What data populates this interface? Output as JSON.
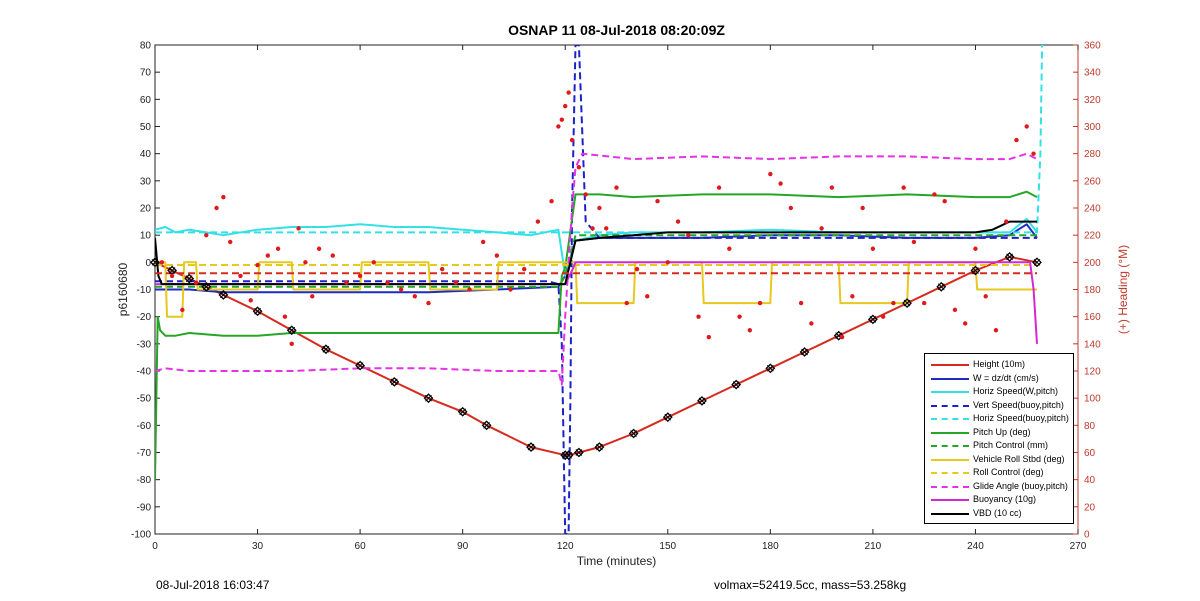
{
  "header": {
    "title": "OSNAP 11 08-Jul-2018 08:20:09Z"
  },
  "footer": {
    "timestamp": "08-Jul-2018 16:03:47",
    "stats": "volmax=52419.5cc, mass=53.258kg"
  },
  "chart_data": {
    "type": "line",
    "title": "OSNAP 11 08-Jul-2018 08:20:09Z",
    "xlabel": "Time (minutes)",
    "ylabel": "p6160680",
    "y2label": "(+) Heading (°M)",
    "xlim": [
      0,
      270
    ],
    "ylim": [
      -100,
      80
    ],
    "y2lim": [
      0,
      360
    ],
    "xticks": [
      "0",
      "30",
      "60",
      "90",
      "120",
      "150",
      "180",
      "210",
      "240",
      "270"
    ],
    "yticks": [
      "80",
      "70",
      "60",
      "50",
      "40",
      "30",
      "20",
      "10",
      "0",
      "-10",
      "-20",
      "-30",
      "-40",
      "-50",
      "-60",
      "-70",
      "-80",
      "-90",
      "-100"
    ],
    "y2ticks": [
      "360",
      "340",
      "320",
      "300",
      "280",
      "260",
      "240",
      "220",
      "200",
      "180",
      "160",
      "140",
      "120",
      "100",
      "80",
      "60",
      "40",
      "20",
      "0"
    ],
    "grid": false,
    "legend_position": "bottom-right",
    "colors": {
      "height": "#d62a1e",
      "w": "#1f2dbf",
      "horiz": "#33e0e6",
      "vert": "#1a22c8",
      "pitch": "#26a526",
      "roll": "#e6c81e",
      "glide": "#e632e6",
      "buoy": "#d22ad2",
      "vbd": "#000000",
      "heading": "#e0191b",
      "right_axis": "#c0392b"
    },
    "series": [
      {
        "name": "Height (10m)",
        "color": "#d62a1e",
        "style": "solid",
        "x": [
          0,
          5,
          10,
          15,
          20,
          30,
          40,
          50,
          60,
          70,
          80,
          90,
          97,
          110,
          120,
          121,
          124,
          130,
          140,
          150,
          160,
          170,
          180,
          190,
          200,
          210,
          220,
          230,
          240,
          250,
          258
        ],
        "y": [
          0,
          -3,
          -6,
          -9,
          -12,
          -18,
          -25,
          -32,
          -38,
          -44,
          -50,
          -55,
          -60,
          -68,
          -71,
          -71,
          -70,
          -68,
          -63,
          -57,
          -51,
          -45,
          -39,
          -33,
          -27,
          -21,
          -15,
          -9,
          -3,
          2,
          0
        ]
      },
      {
        "name": "W = dz/dt (cm/s)",
        "color": "#1f2dbf",
        "style": "solid",
        "x": [
          0,
          10,
          20,
          40,
          60,
          80,
          100,
          118,
          120,
          123,
          130,
          140,
          150,
          160,
          180,
          200,
          220,
          240,
          250,
          255,
          258
        ],
        "y": [
          -10,
          -10,
          -11,
          -11,
          -11,
          -11,
          -10,
          -9,
          -5,
          8,
          9,
          9,
          9,
          9,
          10,
          10,
          9,
          9,
          10,
          14,
          9
        ]
      },
      {
        "name": "Horiz Speed(W,pitch)",
        "color": "#33e0e6",
        "style": "solid",
        "x": [
          0,
          3,
          6,
          10,
          15,
          20,
          30,
          40,
          50,
          60,
          70,
          80,
          90,
          100,
          110,
          118,
          120,
          123,
          130,
          140,
          160,
          180,
          200,
          220,
          240,
          250,
          255,
          258
        ],
        "y": [
          12,
          13,
          11,
          12,
          11,
          10,
          12,
          13,
          13,
          14,
          13,
          13,
          12,
          11,
          10,
          12,
          -5,
          8,
          10,
          11,
          11,
          12,
          11,
          11,
          11,
          11,
          16,
          11
        ]
      },
      {
        "name": "Vert Speed(buoy,pitch)",
        "color": "#1a22c8",
        "style": "dashed",
        "x": [
          0,
          30,
          60,
          90,
          115,
          118,
          119,
          120,
          121,
          121.5,
          122,
          123,
          124,
          126,
          130,
          160,
          200,
          240,
          258
        ],
        "y": [
          -7,
          -7,
          -7,
          -7,
          -7,
          -8,
          -30,
          -100,
          -100,
          -50,
          20,
          80,
          80,
          15,
          9,
          9,
          9,
          9,
          9
        ]
      },
      {
        "name": "Horiz Speed(buoy,pitch)",
        "color": "#33e0e6",
        "style": "dashed",
        "x": [
          0,
          30,
          60,
          90,
          118,
          120,
          123,
          130,
          160,
          200,
          240,
          258,
          259,
          259.5,
          260
        ],
        "y": [
          11,
          11,
          11,
          11,
          11,
          11,
          11,
          11,
          11,
          11,
          11,
          11,
          40,
          80,
          80
        ]
      },
      {
        "name": "Pitch Up (deg)",
        "color": "#26a526",
        "style": "solid",
        "x": [
          0,
          0.8,
          1.5,
          3,
          6,
          10,
          20,
          30,
          40,
          60,
          80,
          100,
          118,
          119,
          120,
          123,
          130,
          140,
          160,
          180,
          200,
          220,
          240,
          250,
          255,
          258
        ],
        "y": [
          -80,
          -20,
          -25,
          -27,
          -27,
          -26,
          -27,
          -27,
          -26,
          -26,
          -26,
          -26,
          -26,
          -5,
          -2,
          25,
          25,
          24,
          25,
          25,
          24,
          25,
          24,
          24,
          26,
          24
        ]
      },
      {
        "name": "Pitch Control (mm)",
        "color": "#26a526",
        "style": "dashed",
        "x": [
          0,
          60,
          118,
          120,
          123,
          180,
          240,
          258
        ],
        "y": [
          -9,
          -9,
          -9,
          -5,
          10,
          10,
          10,
          10
        ]
      },
      {
        "name": "Vehicle Roll Stbd (deg)",
        "color": "#e6c81e",
        "style": "solid",
        "x": [
          0,
          3,
          3.5,
          8,
          8.5,
          12,
          12.5,
          30,
          30.5,
          40,
          40.5,
          60,
          60.5,
          80,
          80.5,
          100,
          100.5,
          118,
          120,
          123,
          123.5,
          140,
          140.5,
          160,
          160.5,
          180,
          180.5,
          200,
          200.5,
          220,
          220.5,
          240,
          240.5,
          258
        ],
        "y": [
          0,
          0,
          -20,
          -20,
          0,
          0,
          -10,
          -10,
          0,
          0,
          -10,
          -10,
          0,
          0,
          -10,
          -10,
          0,
          0,
          0,
          0,
          -15,
          -15,
          0,
          0,
          -15,
          -15,
          0,
          0,
          -15,
          -15,
          0,
          0,
          -10,
          -10
        ]
      },
      {
        "name": "Roll Control (deg)",
        "color": "#e6c81e",
        "style": "dashed",
        "x": [
          0,
          60,
          120,
          180,
          240,
          258
        ],
        "y": [
          -1,
          -1,
          -1,
          -1,
          -1,
          -1
        ]
      },
      {
        "name": "Glide Angle (buoy,pitch)",
        "color": "#e632e6",
        "style": "dashed",
        "x": [
          0,
          3,
          10,
          20,
          40,
          60,
          80,
          100,
          118,
          119,
          120,
          122,
          123,
          125,
          140,
          160,
          180,
          200,
          220,
          240,
          250,
          255,
          258
        ],
        "y": [
          -40,
          -39,
          -40,
          -40,
          -40,
          -39,
          -39,
          -40,
          -40,
          -45,
          -20,
          20,
          35,
          40,
          38,
          39,
          38,
          39,
          39,
          38,
          38,
          40,
          38
        ]
      },
      {
        "name": "Buoyancy (10g)",
        "color": "#d22ad2",
        "style": "solid",
        "x": [
          0,
          60,
          118,
          120,
          122,
          123,
          130,
          180,
          240,
          256,
          257,
          258
        ],
        "y": [
          -8,
          -8,
          -8,
          -8,
          -3,
          0,
          0,
          0,
          0,
          0,
          -10,
          -30
        ]
      },
      {
        "name": "VBD (10 cc)",
        "color": "#000000",
        "style": "solid",
        "x": [
          0,
          1,
          2,
          5,
          10,
          20,
          40,
          60,
          80,
          100,
          118,
          120,
          123,
          130,
          140,
          150,
          160,
          180,
          200,
          220,
          240,
          245,
          250,
          258
        ],
        "y": [
          9,
          -5,
          -8,
          -8,
          -8,
          -8,
          -8,
          -8,
          -8,
          -8,
          -8,
          -8,
          8,
          9,
          10,
          11,
          11,
          11,
          11,
          11,
          11,
          12,
          15,
          15
        ]
      },
      {
        "name": "Pitch",
        "color": "#d62a1e",
        "style": "dashed",
        "legend": false,
        "x": [
          0,
          60,
          120,
          180,
          240,
          258
        ],
        "y": [
          -4,
          -4,
          -4,
          -4,
          -4,
          -4
        ]
      }
    ],
    "heading_points": {
      "color": "#e0191b",
      "axis": "right",
      "x": [
        2,
        5,
        8,
        12,
        15,
        18,
        20,
        22,
        25,
        28,
        30,
        33,
        36,
        38,
        40,
        42,
        44,
        46,
        48,
        52,
        56,
        60,
        64,
        68,
        72,
        76,
        80,
        84,
        88,
        92,
        96,
        100,
        104,
        108,
        112,
        116,
        118,
        119,
        120,
        121,
        122,
        124,
        126,
        128,
        130,
        132,
        135,
        138,
        141,
        144,
        147,
        150,
        153,
        156,
        159,
        162,
        165,
        168,
        171,
        174,
        177,
        180,
        183,
        186,
        189,
        192,
        195,
        198,
        201,
        204,
        207,
        210,
        213,
        216,
        219,
        222,
        225,
        228,
        231,
        234,
        237,
        240,
        243,
        246,
        249,
        252,
        255,
        257
      ],
      "y": [
        200,
        190,
        165,
        185,
        220,
        240,
        248,
        215,
        190,
        172,
        198,
        205,
        210,
        160,
        140,
        225,
        200,
        175,
        210,
        205,
        185,
        190,
        200,
        185,
        180,
        175,
        170,
        195,
        185,
        180,
        215,
        205,
        180,
        195,
        230,
        245,
        300,
        305,
        315,
        325,
        290,
        270,
        250,
        225,
        240,
        225,
        255,
        170,
        195,
        175,
        245,
        200,
        230,
        220,
        160,
        145,
        255,
        210,
        160,
        150,
        170,
        265,
        258,
        240,
        170,
        155,
        225,
        255,
        145,
        175,
        240,
        210,
        160,
        170,
        255,
        215,
        170,
        250,
        245,
        165,
        155,
        210,
        175,
        150,
        230,
        290,
        300,
        280
      ]
    }
  },
  "legend": {
    "entries": [
      {
        "label": "Height (10m)",
        "color": "#d62a1e",
        "style": "solid"
      },
      {
        "label": "W = dz/dt (cm/s)",
        "color": "#1f2dbf",
        "style": "solid"
      },
      {
        "label": "Horiz Speed(W,pitch)",
        "color": "#33e0e6",
        "style": "solid"
      },
      {
        "label": "Vert Speed(buoy,pitch)",
        "color": "#1a22c8",
        "style": "dashed"
      },
      {
        "label": "Horiz Speed(buoy,pitch)",
        "color": "#33e0e6",
        "style": "dashed"
      },
      {
        "label": "Pitch Up (deg)",
        "color": "#26a526",
        "style": "solid"
      },
      {
        "label": "Pitch Control (mm)",
        "color": "#26a526",
        "style": "dashed"
      },
      {
        "label": "Vehicle Roll Stbd (deg)",
        "color": "#e6c81e",
        "style": "solid"
      },
      {
        "label": "Roll Control (deg)",
        "color": "#e6c81e",
        "style": "dashed"
      },
      {
        "label": "Glide Angle (buoy,pitch)",
        "color": "#e632e6",
        "style": "dashed"
      },
      {
        "label": "Buoyancy (10g)",
        "color": "#d22ad2",
        "style": "solid"
      },
      {
        "label": "VBD (10 cc)",
        "color": "#000000",
        "style": "solid"
      }
    ]
  }
}
